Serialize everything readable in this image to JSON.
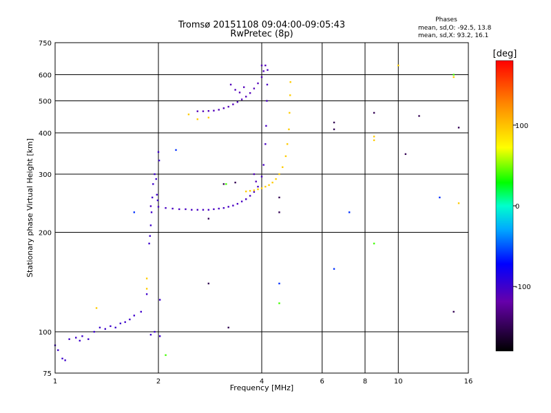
{
  "chart_data": {
    "type": "scatter",
    "title": "Tromsø 20151108 09:04:00-09:05:43",
    "subtitle": "RwPretec (8p)",
    "phase_stats": {
      "title": "Phases",
      "line_o": "mean, sd,O: -92.5, 13.8",
      "line_x": "mean, sd,X:  93.2, 16.1"
    },
    "xlabel": "Frequency [MHz]",
    "ylabel": "Stationary phase Virtual Height [km]",
    "xscale": "log",
    "yscale": "log",
    "xlim": [
      1,
      16
    ],
    "ylim": [
      75,
      750
    ],
    "xticks": [
      1,
      2,
      4,
      6,
      8,
      10,
      16
    ],
    "yticks": [
      75,
      100,
      200,
      300,
      400,
      500,
      600,
      750
    ],
    "grid": true,
    "colorbar": {
      "label": "[deg]",
      "range": [
        -180,
        180
      ],
      "ticks": [
        100,
        0,
        -100
      ]
    },
    "series": [
      {
        "phase_deg": -100,
        "points": [
          [
            1.0,
            91
          ],
          [
            1.02,
            88
          ],
          [
            1.05,
            83
          ],
          [
            1.07,
            82
          ],
          [
            1.1,
            95
          ],
          [
            1.15,
            96
          ],
          [
            1.18,
            94
          ],
          [
            1.2,
            97
          ],
          [
            1.25,
            95
          ],
          [
            1.3,
            100
          ],
          [
            1.35,
            103
          ],
          [
            1.4,
            102
          ],
          [
            1.45,
            104
          ],
          [
            1.5,
            103
          ],
          [
            1.55,
            106
          ],
          [
            1.6,
            107
          ],
          [
            1.65,
            109
          ],
          [
            1.7,
            112
          ],
          [
            1.78,
            115
          ],
          [
            1.85,
            130
          ],
          [
            1.88,
            185
          ],
          [
            1.89,
            195
          ],
          [
            1.9,
            210
          ],
          [
            1.91,
            230
          ],
          [
            1.92,
            255
          ],
          [
            1.93,
            280
          ],
          [
            1.95,
            300
          ],
          [
            1.97,
            290
          ],
          [
            1.98,
            260
          ],
          [
            1.99,
            250
          ],
          [
            2.0,
            350
          ],
          [
            2.01,
            330
          ],
          [
            2.02,
            125
          ],
          [
            1.9,
            98
          ],
          [
            1.95,
            100
          ],
          [
            2.02,
            97
          ]
        ]
      },
      {
        "phase_deg": -105,
        "points": [
          [
            1.9,
            240
          ],
          [
            2.0,
            239
          ],
          [
            2.1,
            237
          ],
          [
            2.2,
            236
          ],
          [
            2.3,
            235
          ],
          [
            2.4,
            235
          ],
          [
            2.5,
            234
          ],
          [
            2.6,
            234
          ],
          [
            2.7,
            234
          ],
          [
            2.8,
            234
          ],
          [
            2.9,
            235
          ],
          [
            3.0,
            236
          ],
          [
            3.1,
            237
          ],
          [
            3.2,
            239
          ],
          [
            3.3,
            241
          ],
          [
            3.4,
            244
          ],
          [
            3.5,
            248
          ],
          [
            3.6,
            252
          ],
          [
            3.7,
            258
          ],
          [
            3.8,
            265
          ],
          [
            3.9,
            275
          ],
          [
            4.0,
            295
          ],
          [
            4.05,
            320
          ],
          [
            4.1,
            370
          ],
          [
            4.12,
            420
          ],
          [
            4.14,
            500
          ],
          [
            4.15,
            560
          ],
          [
            4.16,
            620
          ]
        ]
      },
      {
        "phase_deg": -110,
        "points": [
          [
            2.6,
            465
          ],
          [
            2.7,
            465
          ],
          [
            2.8,
            466
          ],
          [
            2.9,
            467
          ],
          [
            3.0,
            470
          ],
          [
            3.1,
            475
          ],
          [
            3.2,
            480
          ],
          [
            3.3,
            488
          ],
          [
            3.4,
            496
          ],
          [
            3.5,
            505
          ],
          [
            3.6,
            515
          ],
          [
            3.7,
            528
          ],
          [
            3.8,
            545
          ],
          [
            3.9,
            565
          ],
          [
            4.0,
            590
          ],
          [
            4.05,
            615
          ],
          [
            4.1,
            640
          ],
          [
            3.35,
            540
          ],
          [
            3.45,
            530
          ],
          [
            3.55,
            550
          ],
          [
            3.25,
            560
          ],
          [
            3.8,
            300
          ],
          [
            3.85,
            285
          ],
          [
            4.0,
            640
          ]
        ]
      },
      {
        "phase_deg": 95,
        "points": [
          [
            3.6,
            266
          ],
          [
            3.7,
            267
          ],
          [
            3.8,
            268
          ],
          [
            3.9,
            270
          ],
          [
            4.0,
            272
          ],
          [
            4.1,
            275
          ],
          [
            4.2,
            278
          ],
          [
            4.3,
            283
          ],
          [
            4.4,
            290
          ],
          [
            4.5,
            300
          ],
          [
            4.6,
            315
          ],
          [
            4.7,
            340
          ],
          [
            4.75,
            370
          ],
          [
            4.8,
            410
          ],
          [
            4.82,
            460
          ],
          [
            4.84,
            520
          ],
          [
            4.85,
            570
          ],
          [
            2.45,
            455
          ],
          [
            2.6,
            440
          ],
          [
            2.8,
            445
          ],
          [
            1.32,
            118
          ],
          [
            1.85,
            135
          ],
          [
            1.85,
            145
          ],
          [
            8.5,
            380
          ],
          [
            8.5,
            390
          ],
          [
            10.0,
            640
          ],
          [
            14.5,
            590
          ],
          [
            15.0,
            245
          ]
        ]
      },
      {
        "phase_deg": -60,
        "points": [
          [
            1.7,
            230
          ],
          [
            2.25,
            355
          ],
          [
            7.2,
            230
          ],
          [
            6.5,
            155
          ],
          [
            4.5,
            140
          ],
          [
            13.2,
            255
          ]
        ]
      },
      {
        "phase_deg": -150,
        "points": [
          [
            2.8,
            220
          ],
          [
            3.1,
            280
          ],
          [
            3.35,
            283
          ],
          [
            4.5,
            255
          ],
          [
            4.5,
            230
          ],
          [
            6.5,
            430
          ],
          [
            6.5,
            410
          ],
          [
            8.5,
            460
          ],
          [
            10.5,
            345
          ],
          [
            11.5,
            450
          ],
          [
            15.0,
            415
          ],
          [
            14.5,
            115
          ],
          [
            3.2,
            103
          ],
          [
            2.8,
            140
          ]
        ]
      },
      {
        "phase_deg": 40,
        "points": [
          [
            2.1,
            85
          ],
          [
            3.15,
            280
          ],
          [
            4.5,
            122
          ],
          [
            8.5,
            185
          ],
          [
            14.5,
            600
          ]
        ]
      }
    ]
  }
}
